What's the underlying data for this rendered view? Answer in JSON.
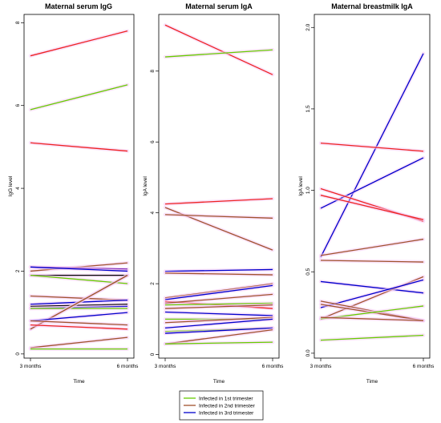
{
  "colors": {
    "first_trimester": "#66cc00",
    "second_trimester": "#a0522d",
    "second_trimester_red": "#ee2222",
    "third_trimester": "#0000cc",
    "pink_halo": "#f6cdf6"
  },
  "legend": {
    "items": [
      {
        "label": "Infected in 1st trimester",
        "color": "#66cc00"
      },
      {
        "label": "Infected in 2nd trimester",
        "color": "#a0522d"
      },
      {
        "label": "Infected in 3rd trimester",
        "color": "#0000cc"
      }
    ]
  },
  "chart_data": [
    {
      "type": "line",
      "title": "Maternal serum IgG",
      "xlabel": "Time",
      "ylabel": "IgG level",
      "categories": [
        "3 months",
        "6 months"
      ],
      "ylim": [
        -0.1,
        8.2
      ],
      "yticks": [
        0,
        2,
        4,
        6,
        8
      ],
      "series": [
        {
          "color": "#ee2222",
          "values": [
            7.2,
            7.8
          ]
        },
        {
          "color": "#66cc00",
          "values": [
            5.9,
            6.5
          ]
        },
        {
          "color": "#ee2222",
          "values": [
            5.1,
            4.9
          ]
        },
        {
          "color": "#a0522d",
          "values": [
            2.0,
            2.2
          ]
        },
        {
          "color": "#6a0dad",
          "values": [
            2.1,
            2.05
          ]
        },
        {
          "color": "#0000cc",
          "values": [
            2.1,
            2.0
          ]
        },
        {
          "color": "#000000",
          "values": [
            1.9,
            1.9
          ]
        },
        {
          "color": "#66cc00",
          "values": [
            1.9,
            1.7
          ]
        },
        {
          "color": "#a0522d",
          "values": [
            1.4,
            1.3
          ]
        },
        {
          "color": "#0000cc",
          "values": [
            1.2,
            1.3
          ]
        },
        {
          "color": "#000000",
          "values": [
            1.15,
            1.2
          ]
        },
        {
          "color": "#0000cc",
          "values": [
            1.1,
            1.15
          ]
        },
        {
          "color": "#66cc00",
          "values": [
            1.1,
            1.1
          ]
        },
        {
          "color": "#66cc00",
          "values": [
            0.6,
            1.9
          ]
        },
        {
          "color": "#a0522d",
          "values": [
            0.6,
            1.9
          ]
        },
        {
          "color": "#0000cc",
          "values": [
            0.8,
            1.0
          ]
        },
        {
          "color": "#a0522d",
          "values": [
            0.8,
            0.7
          ]
        },
        {
          "color": "#ee2222",
          "values": [
            0.7,
            0.6
          ]
        },
        {
          "color": "#a0522d",
          "values": [
            0.15,
            0.4
          ]
        },
        {
          "color": "#66cc00",
          "values": [
            0.12,
            0.12
          ]
        }
      ]
    },
    {
      "type": "line",
      "title": "Maternal serum IgA",
      "xlabel": "Time",
      "ylabel": "IgA level",
      "categories": [
        "3 months",
        "6 months"
      ],
      "ylim": [
        -0.1,
        9.6
      ],
      "yticks": [
        0,
        2,
        4,
        6,
        8
      ],
      "series": [
        {
          "color": "#ee2222",
          "values": [
            9.3,
            7.9
          ]
        },
        {
          "color": "#66cc00",
          "values": [
            8.4,
            8.6
          ]
        },
        {
          "color": "#ee2222",
          "values": [
            4.25,
            4.4
          ]
        },
        {
          "color": "#a0522d",
          "values": [
            4.15,
            2.95
          ]
        },
        {
          "color": "#a0522d",
          "values": [
            3.95,
            3.85
          ]
        },
        {
          "color": "#0000cc",
          "values": [
            2.35,
            2.4
          ]
        },
        {
          "color": "#a0522d",
          "values": [
            2.3,
            2.25
          ]
        },
        {
          "color": "#a0522d",
          "values": [
            1.6,
            2.0
          ]
        },
        {
          "color": "#0000cc",
          "values": [
            1.55,
            1.95
          ]
        },
        {
          "color": "#ee2222",
          "values": [
            1.5,
            1.3
          ]
        },
        {
          "color": "#a0522d",
          "values": [
            1.45,
            1.7
          ]
        },
        {
          "color": "#66cc00",
          "values": [
            1.4,
            1.45
          ]
        },
        {
          "color": "#a0522d",
          "values": [
            1.3,
            1.4
          ]
        },
        {
          "color": "#0000cc",
          "values": [
            1.2,
            1.1
          ]
        },
        {
          "color": "#66cc00",
          "values": [
            1.0,
            1.0
          ]
        },
        {
          "color": "#a0522d",
          "values": [
            0.9,
            1.05
          ]
        },
        {
          "color": "#0000cc",
          "values": [
            0.75,
            1.0
          ]
        },
        {
          "color": "#66cc00",
          "values": [
            0.65,
            0.75
          ]
        },
        {
          "color": "#0000cc",
          "values": [
            0.6,
            0.75
          ]
        },
        {
          "color": "#a0522d",
          "values": [
            0.3,
            0.7
          ]
        },
        {
          "color": "#66cc00",
          "values": [
            0.3,
            0.35
          ]
        }
      ]
    },
    {
      "type": "line",
      "title": "Maternal breastmilk IgA",
      "xlabel": "Time",
      "ylabel": "IgA level",
      "categories": [
        "3 months",
        "6 months"
      ],
      "ylim": [
        -0.03,
        2.08
      ],
      "yticks": [
        0.0,
        0.5,
        1.0,
        1.5,
        2.0
      ],
      "series": [
        {
          "color": "#0000cc",
          "values": [
            0.59,
            1.84
          ]
        },
        {
          "color": "#ee2222",
          "values": [
            1.29,
            1.24
          ]
        },
        {
          "color": "#0000cc",
          "values": [
            0.89,
            1.2
          ]
        },
        {
          "color": "#ee2222",
          "values": [
            1.01,
            0.81
          ]
        },
        {
          "color": "#ee2222",
          "values": [
            0.97,
            0.82
          ]
        },
        {
          "color": "#a0522d",
          "values": [
            0.6,
            0.7
          ]
        },
        {
          "color": "#a0522d",
          "values": [
            0.57,
            0.56
          ]
        },
        {
          "color": "#0000cc",
          "values": [
            0.44,
            0.37
          ]
        },
        {
          "color": "#a0522d",
          "values": [
            0.21,
            0.47
          ]
        },
        {
          "color": "#0000cc",
          "values": [
            0.28,
            0.45
          ]
        },
        {
          "color": "#a0522d",
          "values": [
            0.32,
            0.2
          ]
        },
        {
          "color": "#a0522d",
          "values": [
            0.3,
            0.2
          ]
        },
        {
          "color": "#66cc00",
          "values": [
            0.21,
            0.29
          ]
        },
        {
          "color": "#a0522d",
          "values": [
            0.22,
            0.2
          ]
        },
        {
          "color": "#66cc00",
          "values": [
            0.08,
            0.11
          ]
        }
      ]
    }
  ]
}
